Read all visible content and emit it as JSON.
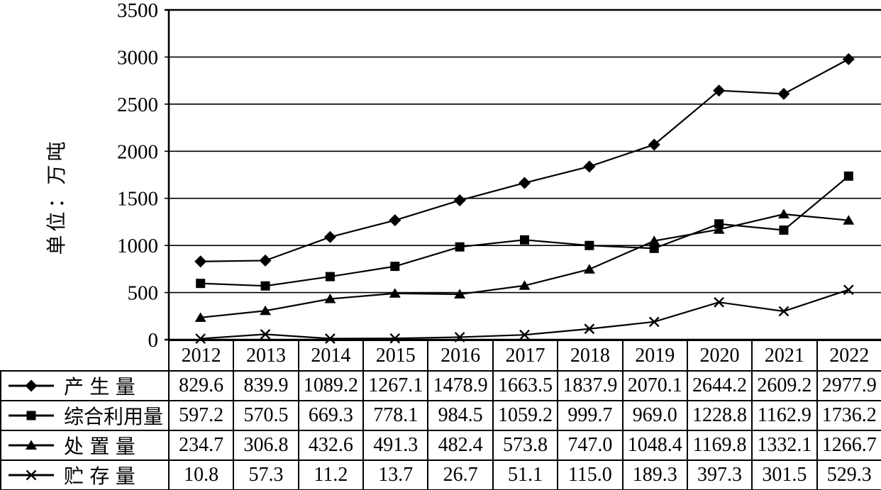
{
  "chart_data": {
    "type": "line",
    "ylabel": "单位：万吨",
    "categories": [
      "2012",
      "2013",
      "2014",
      "2015",
      "2016",
      "2017",
      "2018",
      "2019",
      "2020",
      "2021",
      "2022"
    ],
    "series": [
      {
        "name": "产生量",
        "marker": "diamond",
        "values": [
          829.6,
          839.9,
          1089.2,
          1267.1,
          1478.9,
          1663.5,
          1837.9,
          2070.1,
          2644.2,
          2609.2,
          2977.9
        ]
      },
      {
        "name": "综合利用量",
        "marker": "square",
        "values": [
          597.2,
          570.5,
          669.3,
          778.1,
          984.5,
          1059.2,
          999.7,
          969.0,
          1228.8,
          1162.9,
          1736.2
        ]
      },
      {
        "name": "处置量",
        "marker": "triangle",
        "values": [
          234.7,
          306.8,
          432.6,
          491.3,
          482.4,
          573.8,
          747.0,
          1048.4,
          1169.8,
          1332.1,
          1266.7
        ]
      },
      {
        "name": "贮存量",
        "marker": "x",
        "values": [
          10.8,
          57.3,
          11.2,
          13.7,
          26.7,
          51.1,
          115.0,
          189.3,
          397.3,
          301.5,
          529.3
        ]
      }
    ],
    "ylim": [
      0,
      3500
    ],
    "ytick_step": 500,
    "grid": true,
    "value_decimals": 1,
    "line_color": "#000000",
    "background": "#ffffff",
    "legend_position": "table-left"
  }
}
